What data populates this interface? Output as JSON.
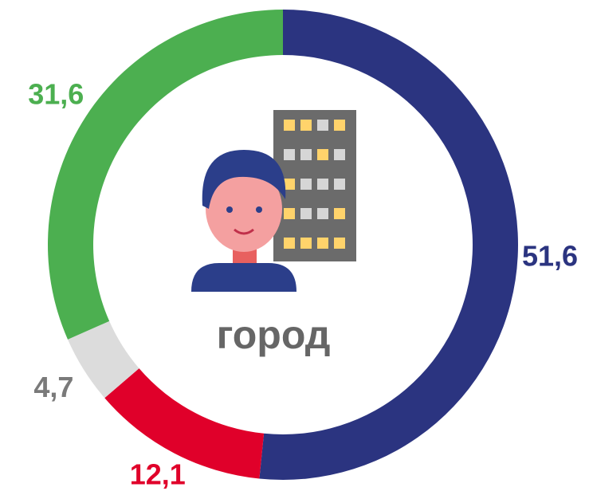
{
  "chart_data": {
    "type": "donut",
    "values": [
      51.6,
      12.1,
      4.7,
      31.6
    ],
    "value_labels": [
      "51,6",
      "12,1",
      "4,7",
      "31,6"
    ],
    "colors": [
      "#2b3480",
      "#e0002a",
      "#dcdcdc",
      "#4caf50"
    ],
    "label_colors": [
      "#2b3480",
      "#e0002a",
      "#7a7a7a",
      "#4caf50"
    ],
    "annotation": "город"
  }
}
